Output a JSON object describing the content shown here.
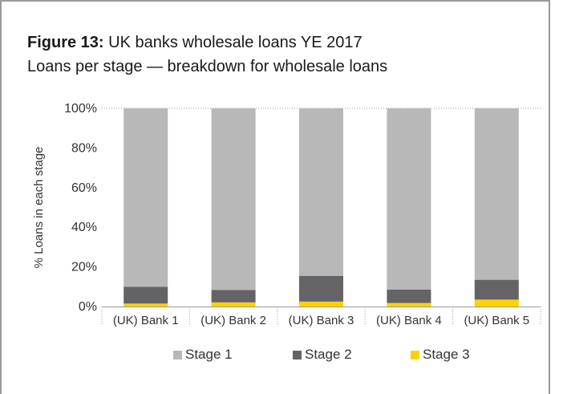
{
  "figure": {
    "label": "Figure 13:",
    "title_rest": "UK banks wholesale loans YE 2017",
    "subtitle": "Loans per stage — breakdown for wholesale loans"
  },
  "chart_data": {
    "type": "bar",
    "stacked": true,
    "percent_stacked": true,
    "categories": [
      "(UK) Bank 1",
      "(UK) Bank 2",
      "(UK) Bank 3",
      "(UK) Bank 4",
      "(UK) Bank 5"
    ],
    "series": [
      {
        "name": "Stage 1",
        "color": "#b8b8b9",
        "values": [
          90.0,
          91.7,
          84.5,
          91.4,
          86.5
        ]
      },
      {
        "name": "Stage 2",
        "color": "#646466",
        "values": [
          8.5,
          6.2,
          13.0,
          6.8,
          10.0
        ]
      },
      {
        "name": "Stage 3",
        "color": "#ffd100",
        "values": [
          1.5,
          2.1,
          2.5,
          1.8,
          3.5
        ]
      }
    ],
    "ylabel": "% Loans in each stage",
    "xlabel": "",
    "ylim": [
      0,
      100
    ],
    "yticks": [
      "0%",
      "20%",
      "40%",
      "60%",
      "80%",
      "100%"
    ],
    "ytick_values": [
      0,
      20,
      40,
      60,
      80,
      100
    ],
    "grid": "dotted top line only",
    "legend_position": "bottom"
  }
}
